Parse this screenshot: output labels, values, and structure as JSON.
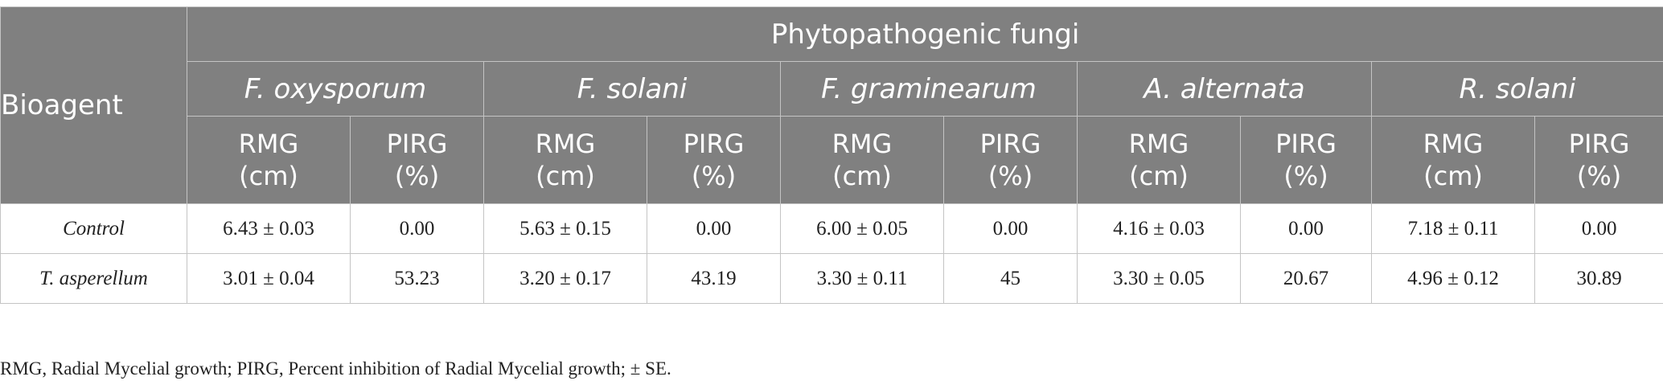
{
  "table": {
    "bioagent_header": "Bioagent",
    "group_header": "Phytopathogenic fungi",
    "species": [
      "F. oxysporum",
      "F. solani",
      "F. graminearum",
      "A. alternata",
      "R. solani"
    ],
    "metric_headers": [
      {
        "line1": "RMG",
        "line2": "(cm)"
      },
      {
        "line1": "PIRG",
        "line2": "(%)"
      }
    ],
    "rows": [
      {
        "label": "Control",
        "cells": [
          "6.43 ± 0.03",
          "0.00",
          "5.63 ± 0.15",
          "0.00",
          "6.00 ± 0.05",
          "0.00",
          "4.16 ± 0.03",
          "0.00",
          "7.18 ± 0.11",
          "0.00"
        ]
      },
      {
        "label": "T. asperellum",
        "cells": [
          "3.01 ± 0.04",
          "53.23",
          "3.20 ± 0.17",
          "43.19",
          "3.30 ± 0.11",
          "45",
          "3.30 ± 0.05",
          "20.67",
          "4.96 ± 0.12",
          "30.89"
        ]
      }
    ]
  },
  "footnote": "RMG, Radial Mycelial growth; PIRG, Percent inhibition of Radial Mycelial growth; ± SE.",
  "colors": {
    "header_bg": "#808080",
    "header_text": "#ffffff",
    "border": "#c4c4c4",
    "body_text": "#222222"
  }
}
